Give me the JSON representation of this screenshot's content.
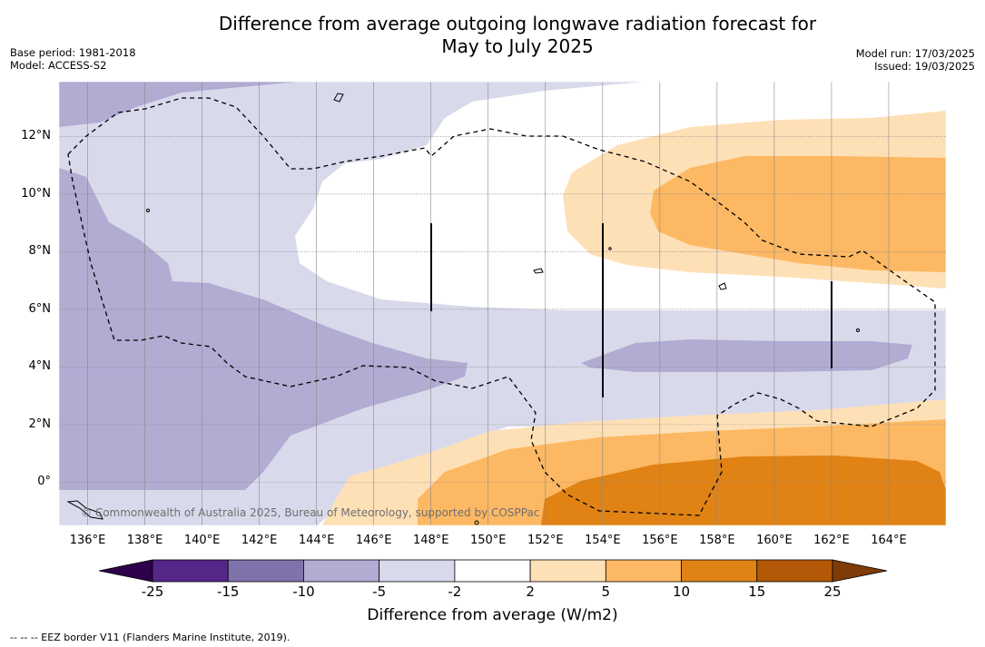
{
  "title_line1": "Difference from average outgoing longwave radiation forecast for",
  "title_line2": "May to July 2025",
  "base_period": "Base period: 1981-2018",
  "model": "Model: ACCESS-S2",
  "model_run": "Model run: 17/03/2025",
  "issued": "Issued: 19/03/2025",
  "copyright": "© Commonwealth of Australia 2025, Bureau of Meteorology, supported by COSPPac",
  "footer": "--  --  -- EEZ border V11 (Flanders Marine Institute, 2019).",
  "colorbar": {
    "title": "Difference from average (W/m2)",
    "tick_labels": [
      "-25",
      "-15",
      "-10",
      "-5",
      "-2",
      "2",
      "5",
      "10",
      "15",
      "25"
    ],
    "colors": [
      "#2d004b",
      "#542788",
      "#8073ac",
      "#b2abd2",
      "#d8daeb",
      "#ffffff",
      "#fee0b6",
      "#fdb863",
      "#e08214",
      "#b35806",
      "#7f3b08"
    ]
  },
  "chart_data": {
    "type": "heatmap",
    "projection": "plate carree",
    "x_tick_labels": [
      "136°E",
      "138°E",
      "140°E",
      "142°E",
      "144°E",
      "146°E",
      "148°E",
      "150°E",
      "152°E",
      "154°E",
      "156°E",
      "158°E",
      "160°E",
      "162°E",
      "164°E"
    ],
    "y_tick_labels": [
      "12°N",
      "10°N",
      "8°N",
      "6°N",
      "4°N",
      "2°N",
      "0°"
    ],
    "x_ticks": [
      136,
      138,
      140,
      142,
      144,
      146,
      148,
      150,
      152,
      154,
      156,
      158,
      160,
      162,
      164
    ],
    "y_ticks": [
      12,
      10,
      8,
      6,
      4,
      2,
      0
    ],
    "xlim": [
      135,
      166
    ],
    "ylim": [
      -1.5,
      13.9
    ],
    "grid": true,
    "levels": [
      -25,
      -15,
      -10,
      -5,
      -2,
      2,
      5,
      10,
      15,
      25
    ],
    "regions": [
      {
        "name": "negative (-5 to -2)",
        "value_range": [
          -5,
          -2
        ]
      },
      {
        "name": "negative (-10 to -5)",
        "value_range": [
          -10,
          -5
        ]
      },
      {
        "name": "positive (2 to 5)",
        "value_range": [
          2,
          5
        ]
      },
      {
        "name": "positive (5 to 10)",
        "value_range": [
          5,
          10
        ]
      },
      {
        "name": "positive (10 to 15)",
        "value_range": [
          10,
          15
        ]
      }
    ]
  }
}
